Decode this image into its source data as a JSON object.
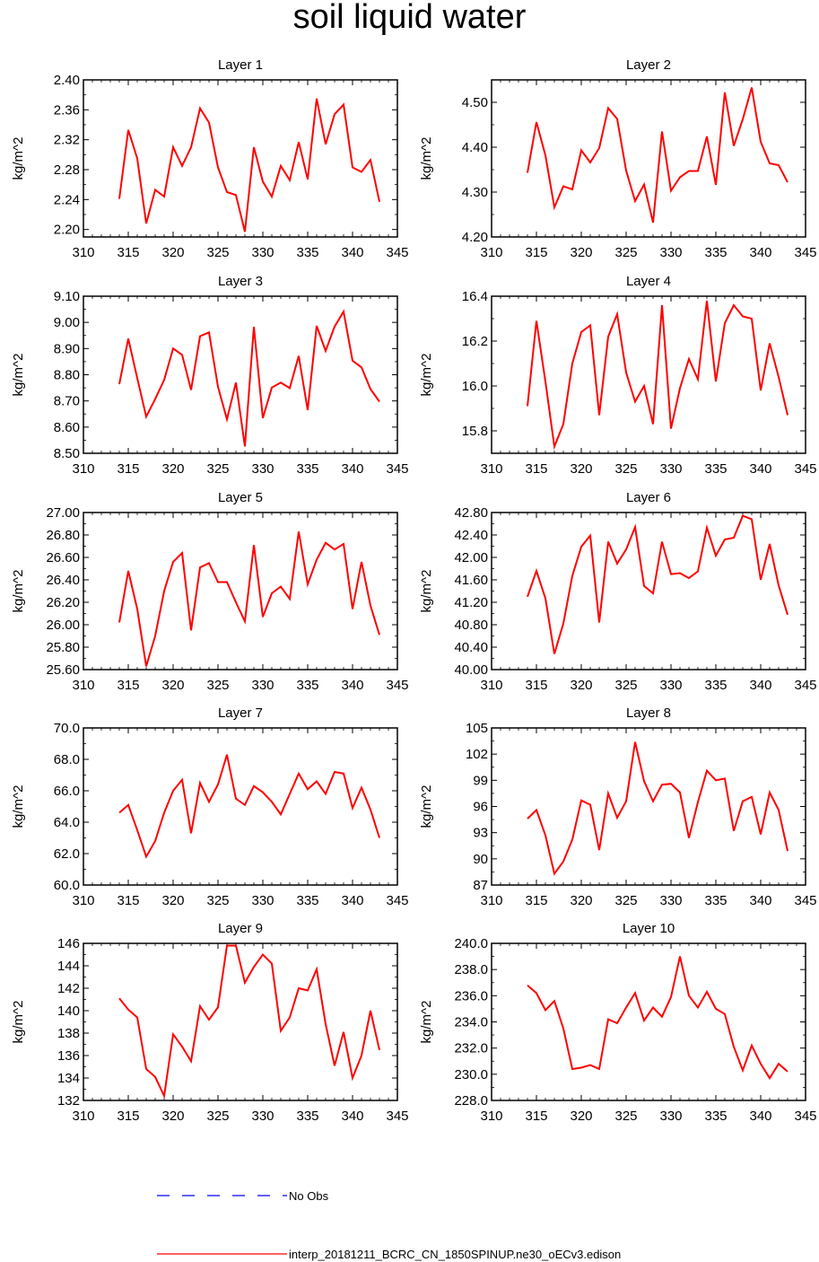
{
  "title": "soil liquid water",
  "legend": {
    "obs_label": "No Obs",
    "obs_color": "#0000ff",
    "model_label": "interp_20181211_BCRC_CN_1850SPINUP.ne30_oECv3.edison",
    "model_color": "#ff0000"
  },
  "chart_data": [
    {
      "type": "line",
      "title": "Layer 1",
      "ylabel": "kg/m^2",
      "xlabel": "",
      "xlim": [
        310,
        345
      ],
      "ylim": [
        2.19,
        2.4
      ],
      "xticks": [
        310,
        315,
        320,
        325,
        330,
        335,
        340,
        345
      ],
      "xtick_labels": [
        "310",
        "315",
        "320",
        "325",
        "330",
        "335",
        "340",
        "345"
      ],
      "yticks": [
        2.2,
        2.24,
        2.28,
        2.32,
        2.36,
        2.4
      ],
      "ytick_labels": [
        "2.20",
        "2.24",
        "2.28",
        "2.32",
        "2.36",
        "2.40"
      ],
      "x": [
        314,
        315,
        316,
        317,
        318,
        319,
        320,
        321,
        322,
        323,
        324,
        325,
        326,
        327,
        328,
        329,
        330,
        331,
        332,
        333,
        334,
        335,
        336,
        337,
        338,
        339,
        340,
        341,
        342,
        343
      ],
      "series": [
        {
          "values": [
            2.241,
            2.333,
            2.295,
            2.208,
            2.253,
            2.244,
            2.31,
            2.285,
            2.31,
            2.362,
            2.343,
            2.283,
            2.25,
            2.246,
            2.197,
            2.31,
            2.264,
            2.244,
            2.285,
            2.266,
            2.317,
            2.267,
            2.375,
            2.314,
            2.354,
            2.367,
            2.283,
            2.277,
            2.293,
            2.237
          ]
        }
      ]
    },
    {
      "type": "line",
      "title": "Layer 2",
      "ylabel": "kg/m^2",
      "xlabel": "",
      "xlim": [
        310,
        345
      ],
      "ylim": [
        4.2,
        4.55
      ],
      "xticks": [
        310,
        315,
        320,
        325,
        330,
        335,
        340,
        345
      ],
      "xtick_labels": [
        "310",
        "315",
        "320",
        "325",
        "330",
        "335",
        "340",
        "345"
      ],
      "yticks": [
        4.2,
        4.3,
        4.4,
        4.5
      ],
      "ytick_labels": [
        "4.20",
        "4.30",
        "4.40",
        "4.50"
      ],
      "x": [
        314,
        315,
        316,
        317,
        318,
        319,
        320,
        321,
        322,
        323,
        324,
        325,
        326,
        327,
        328,
        329,
        330,
        331,
        332,
        333,
        334,
        335,
        336,
        337,
        338,
        339,
        340,
        341,
        342,
        343
      ],
      "series": [
        {
          "values": [
            4.343,
            4.456,
            4.382,
            4.266,
            4.313,
            4.306,
            4.393,
            4.366,
            4.398,
            4.487,
            4.463,
            4.348,
            4.28,
            4.317,
            4.232,
            4.435,
            4.303,
            4.333,
            4.347,
            4.347,
            4.424,
            4.316,
            4.522,
            4.403,
            4.462,
            4.533,
            4.412,
            4.364,
            4.36,
            4.322
          ]
        }
      ]
    },
    {
      "type": "line",
      "title": "Layer 3",
      "ylabel": "kg/m^2",
      "xlabel": "",
      "xlim": [
        310,
        345
      ],
      "ylim": [
        8.5,
        9.1
      ],
      "xticks": [
        310,
        315,
        320,
        325,
        330,
        335,
        340,
        345
      ],
      "xtick_labels": [
        "310",
        "315",
        "320",
        "325",
        "330",
        "335",
        "340",
        "345"
      ],
      "yticks": [
        8.5,
        8.6,
        8.7,
        8.8,
        8.9,
        9.0,
        9.1
      ],
      "ytick_labels": [
        "8.50",
        "8.60",
        "8.70",
        "8.80",
        "8.90",
        "9.00",
        "9.10"
      ],
      "x": [
        314,
        315,
        316,
        317,
        318,
        319,
        320,
        321,
        322,
        323,
        324,
        325,
        326,
        327,
        328,
        329,
        330,
        331,
        332,
        333,
        334,
        335,
        336,
        337,
        338,
        339,
        340,
        341,
        342,
        343
      ],
      "series": [
        {
          "values": [
            8.764,
            8.938,
            8.787,
            8.64,
            8.707,
            8.78,
            8.9,
            8.876,
            8.742,
            8.947,
            8.962,
            8.754,
            8.63,
            8.77,
            8.526,
            8.983,
            8.634,
            8.751,
            8.77,
            8.749,
            8.872,
            8.665,
            8.987,
            8.891,
            8.984,
            9.041,
            8.854,
            8.828,
            8.745,
            8.697
          ]
        }
      ]
    },
    {
      "type": "line",
      "title": "Layer 4",
      "ylabel": "kg/m^2",
      "xlabel": "",
      "xlim": [
        310,
        345
      ],
      "ylim": [
        15.7,
        16.4
      ],
      "xticks": [
        310,
        315,
        320,
        325,
        330,
        335,
        340,
        345
      ],
      "xtick_labels": [
        "310",
        "315",
        "320",
        "325",
        "330",
        "335",
        "340",
        "345"
      ],
      "yticks": [
        15.8,
        16.0,
        16.2,
        16.4
      ],
      "ytick_labels": [
        "15.8",
        "16.0",
        "16.2",
        "16.4"
      ],
      "x": [
        314,
        315,
        316,
        317,
        318,
        319,
        320,
        321,
        322,
        323,
        324,
        325,
        326,
        327,
        328,
        329,
        330,
        331,
        332,
        333,
        334,
        335,
        336,
        337,
        338,
        339,
        340,
        341,
        342,
        343
      ],
      "series": [
        {
          "values": [
            15.91,
            16.29,
            16.02,
            15.73,
            15.83,
            16.1,
            16.24,
            16.27,
            15.87,
            16.22,
            16.32,
            16.06,
            15.93,
            16.0,
            15.83,
            16.36,
            15.81,
            15.99,
            16.12,
            16.03,
            16.38,
            16.02,
            16.28,
            16.36,
            16.31,
            16.3,
            15.98,
            16.19,
            16.04,
            15.87
          ]
        }
      ]
    },
    {
      "type": "line",
      "title": "Layer 5",
      "ylabel": "kg/m^2",
      "xlabel": "",
      "xlim": [
        310,
        345
      ],
      "ylim": [
        25.6,
        27.0
      ],
      "xticks": [
        310,
        315,
        320,
        325,
        330,
        335,
        340,
        345
      ],
      "xtick_labels": [
        "310",
        "315",
        "320",
        "325",
        "330",
        "335",
        "340",
        "345"
      ],
      "yticks": [
        25.6,
        25.8,
        26.0,
        26.2,
        26.4,
        26.6,
        26.8,
        27.0
      ],
      "ytick_labels": [
        "25.60",
        "25.80",
        "26.00",
        "26.20",
        "26.40",
        "26.60",
        "26.80",
        "27.00"
      ],
      "x": [
        314,
        315,
        316,
        317,
        318,
        319,
        320,
        321,
        322,
        323,
        324,
        325,
        326,
        327,
        328,
        329,
        330,
        331,
        332,
        333,
        334,
        335,
        336,
        337,
        338,
        339,
        340,
        341,
        342,
        343
      ],
      "series": [
        {
          "values": [
            26.02,
            26.48,
            26.14,
            25.63,
            25.9,
            26.3,
            26.56,
            26.64,
            25.95,
            26.51,
            26.55,
            26.38,
            26.38,
            26.2,
            26.03,
            26.71,
            26.07,
            26.28,
            26.34,
            26.23,
            26.83,
            26.36,
            26.58,
            26.73,
            26.67,
            26.72,
            26.14,
            26.56,
            26.17,
            25.91
          ]
        }
      ]
    },
    {
      "type": "line",
      "title": "Layer 6",
      "ylabel": "kg/m^2",
      "xlabel": "",
      "xlim": [
        310,
        345
      ],
      "ylim": [
        40.0,
        42.8
      ],
      "xticks": [
        310,
        315,
        320,
        325,
        330,
        335,
        340,
        345
      ],
      "xtick_labels": [
        "310",
        "315",
        "320",
        "325",
        "330",
        "335",
        "340",
        "345"
      ],
      "yticks": [
        40.0,
        40.4,
        40.8,
        41.2,
        41.6,
        42.0,
        42.4,
        42.8
      ],
      "ytick_labels": [
        "40.00",
        "40.40",
        "40.80",
        "41.20",
        "41.60",
        "42.00",
        "42.40",
        "42.80"
      ],
      "x": [
        314,
        315,
        316,
        317,
        318,
        319,
        320,
        321,
        322,
        323,
        324,
        325,
        326,
        327,
        328,
        329,
        330,
        331,
        332,
        333,
        334,
        335,
        336,
        337,
        338,
        339,
        340,
        341,
        342,
        343
      ],
      "series": [
        {
          "values": [
            41.3,
            41.76,
            41.27,
            40.28,
            40.82,
            41.67,
            42.19,
            42.39,
            40.84,
            42.28,
            41.89,
            42.14,
            42.54,
            41.49,
            41.36,
            42.28,
            41.7,
            41.72,
            41.63,
            41.75,
            42.53,
            42.03,
            42.32,
            42.35,
            42.74,
            42.68,
            41.6,
            42.24,
            41.5,
            40.98
          ]
        }
      ]
    },
    {
      "type": "line",
      "title": "Layer 7",
      "ylabel": "kg/m^2",
      "xlabel": "",
      "xlim": [
        310,
        345
      ],
      "ylim": [
        60.0,
        70.0
      ],
      "xticks": [
        310,
        315,
        320,
        325,
        330,
        335,
        340,
        345
      ],
      "xtick_labels": [
        "310",
        "315",
        "320",
        "325",
        "330",
        "335",
        "340",
        "345"
      ],
      "yticks": [
        60.0,
        62.0,
        64.0,
        66.0,
        68.0,
        70.0
      ],
      "ytick_labels": [
        "60.0",
        "62.0",
        "64.0",
        "66.0",
        "68.0",
        "70.0"
      ],
      "x": [
        314,
        315,
        316,
        317,
        318,
        319,
        320,
        321,
        322,
        323,
        324,
        325,
        326,
        327,
        328,
        329,
        330,
        331,
        332,
        333,
        334,
        335,
        336,
        337,
        338,
        339,
        340,
        341,
        342,
        343
      ],
      "series": [
        {
          "values": [
            64.6,
            65.1,
            63.5,
            61.8,
            62.8,
            64.6,
            66.0,
            66.7,
            63.3,
            66.5,
            65.3,
            66.4,
            68.3,
            65.5,
            65.1,
            66.3,
            65.9,
            65.3,
            64.5,
            65.8,
            67.1,
            66.1,
            66.6,
            65.8,
            67.2,
            67.1,
            64.9,
            66.2,
            64.8,
            63.0
          ]
        }
      ]
    },
    {
      "type": "line",
      "title": "Layer 8",
      "ylabel": "kg/m^2",
      "xlabel": "",
      "xlim": [
        310,
        345
      ],
      "ylim": [
        87,
        105
      ],
      "xticks": [
        310,
        315,
        320,
        325,
        330,
        335,
        340,
        345
      ],
      "xtick_labels": [
        "310",
        "315",
        "320",
        "325",
        "330",
        "335",
        "340",
        "345"
      ],
      "yticks": [
        87,
        90,
        93,
        96,
        99,
        102,
        105
      ],
      "ytick_labels": [
        "87",
        "90",
        "93",
        "96",
        "99",
        "102",
        "105"
      ],
      "x": [
        314,
        315,
        316,
        317,
        318,
        319,
        320,
        321,
        322,
        323,
        324,
        325,
        326,
        327,
        328,
        329,
        330,
        331,
        332,
        333,
        334,
        335,
        336,
        337,
        338,
        339,
        340,
        341,
        342,
        343
      ],
      "series": [
        {
          "values": [
            94.6,
            95.6,
            92.7,
            88.3,
            89.7,
            92.2,
            96.7,
            96.2,
            91.0,
            97.5,
            94.7,
            96.6,
            103.4,
            98.9,
            96.6,
            98.5,
            98.6,
            97.6,
            92.4,
            96.5,
            100.1,
            99.0,
            99.2,
            93.2,
            96.6,
            97.1,
            92.8,
            97.6,
            95.6,
            90.9
          ]
        }
      ]
    },
    {
      "type": "line",
      "title": "Layer 9",
      "ylabel": "kg/m^2",
      "xlabel": "",
      "xlim": [
        310,
        345
      ],
      "ylim": [
        132,
        146
      ],
      "xticks": [
        310,
        315,
        320,
        325,
        330,
        335,
        340,
        345
      ],
      "xtick_labels": [
        "310",
        "315",
        "320",
        "325",
        "330",
        "335",
        "340",
        "345"
      ],
      "yticks": [
        132,
        134,
        136,
        138,
        140,
        142,
        144,
        146
      ],
      "ytick_labels": [
        "132",
        "134",
        "136",
        "138",
        "140",
        "142",
        "144",
        "146"
      ],
      "x": [
        314,
        315,
        316,
        317,
        318,
        319,
        320,
        321,
        322,
        323,
        324,
        325,
        326,
        327,
        328,
        329,
        330,
        331,
        332,
        333,
        334,
        335,
        336,
        337,
        338,
        339,
        340,
        341,
        342,
        343
      ],
      "series": [
        {
          "values": [
            141.1,
            140.1,
            139.4,
            134.8,
            134.1,
            132.4,
            137.9,
            136.8,
            135.5,
            140.4,
            139.2,
            140.3,
            145.8,
            145.8,
            142.5,
            143.9,
            145.0,
            144.2,
            138.2,
            139.4,
            142.0,
            141.8,
            143.7,
            138.8,
            135.1,
            138.1,
            134.0,
            136.0,
            140.0,
            136.5
          ]
        }
      ]
    },
    {
      "type": "line",
      "title": "Layer 10",
      "ylabel": "kg/m^2",
      "xlabel": "",
      "xlim": [
        310,
        345
      ],
      "ylim": [
        228.0,
        240.0
      ],
      "xticks": [
        310,
        315,
        320,
        325,
        330,
        335,
        340,
        345
      ],
      "xtick_labels": [
        "310",
        "315",
        "320",
        "325",
        "330",
        "335",
        "340",
        "345"
      ],
      "yticks": [
        228.0,
        230.0,
        232.0,
        234.0,
        236.0,
        238.0,
        240.0
      ],
      "ytick_labels": [
        "228.0",
        "230.0",
        "232.0",
        "234.0",
        "236.0",
        "238.0",
        "240.0"
      ],
      "x": [
        314,
        315,
        316,
        317,
        318,
        319,
        320,
        321,
        322,
        323,
        324,
        325,
        326,
        327,
        328,
        329,
        330,
        331,
        332,
        333,
        334,
        335,
        336,
        337,
        338,
        339,
        340,
        341,
        342,
        343
      ],
      "series": [
        {
          "values": [
            236.8,
            236.2,
            234.9,
            235.6,
            233.5,
            230.4,
            230.5,
            230.7,
            230.4,
            234.2,
            233.9,
            235.1,
            236.2,
            234.1,
            235.1,
            234.4,
            235.9,
            239.0,
            236.0,
            235.1,
            236.3,
            235.0,
            234.6,
            232.1,
            230.3,
            232.2,
            230.8,
            229.7,
            230.8,
            230.2
          ]
        }
      ]
    }
  ]
}
